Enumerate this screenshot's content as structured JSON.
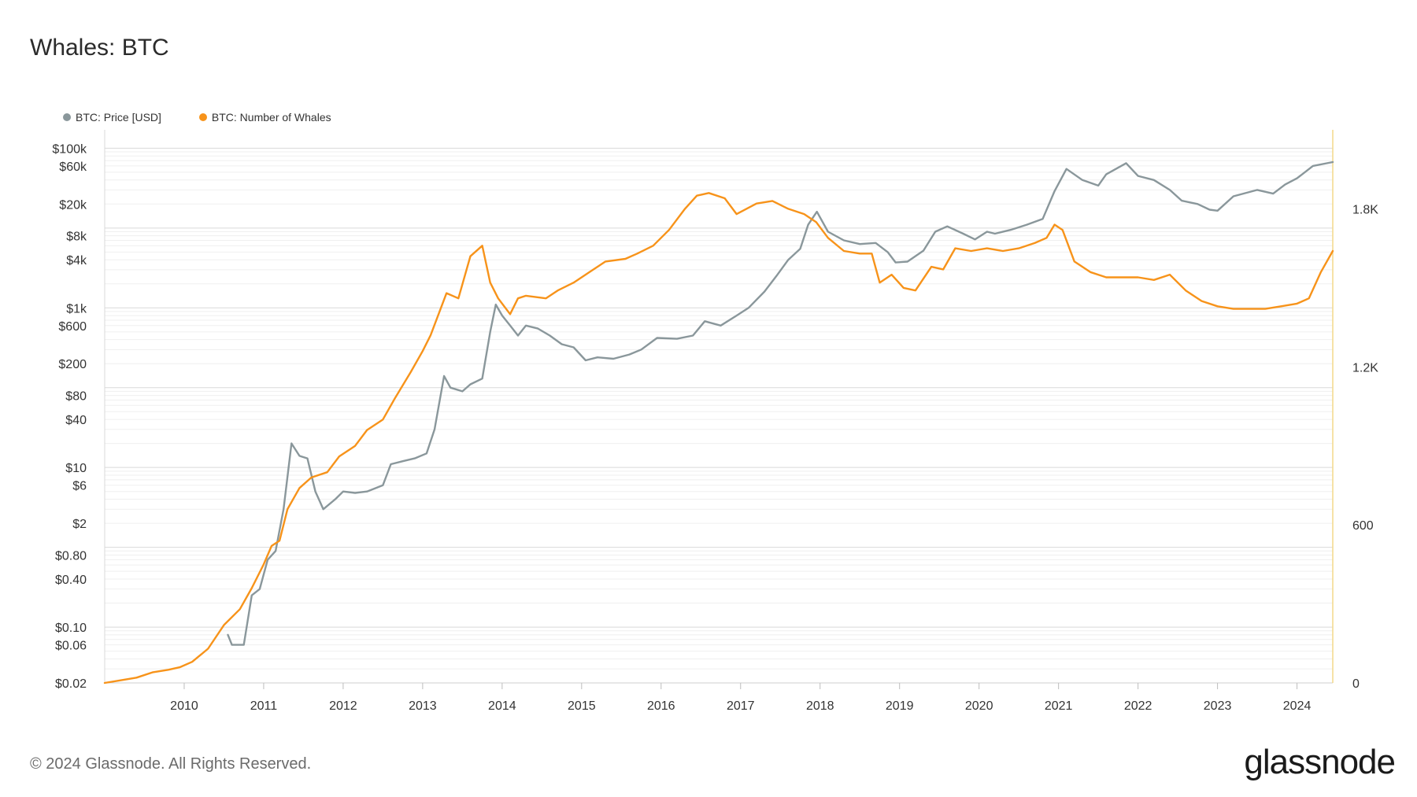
{
  "page": {
    "title": "Whales: BTC",
    "footer": "© 2024 Glassnode. All Rights Reserved.",
    "brand": "glassnode"
  },
  "chart_data": {
    "type": "line",
    "title": "Whales: BTC",
    "legend": "top-left",
    "grid": true,
    "x_ticks": [
      "2010",
      "2011",
      "2012",
      "2013",
      "2014",
      "2015",
      "2016",
      "2017",
      "2018",
      "2019",
      "2020",
      "2021",
      "2022",
      "2023",
      "2024"
    ],
    "x_range": [
      2009.0,
      2024.45
    ],
    "y_left": {
      "scale": "log",
      "range": [
        0.02,
        170000
      ],
      "ticks": [
        {
          "v": 0.02,
          "label": "$0.02"
        },
        {
          "v": 0.06,
          "label": "$0.06"
        },
        {
          "v": 0.1,
          "label": "$0.10"
        },
        {
          "v": 0.4,
          "label": "$0.40"
        },
        {
          "v": 0.8,
          "label": "$0.80"
        },
        {
          "v": 2,
          "label": "$2"
        },
        {
          "v": 6,
          "label": "$6"
        },
        {
          "v": 10,
          "label": "$10"
        },
        {
          "v": 40,
          "label": "$40"
        },
        {
          "v": 80,
          "label": "$80"
        },
        {
          "v": 200,
          "label": "$200"
        },
        {
          "v": 600,
          "label": "$600"
        },
        {
          "v": 1000,
          "label": "$1k"
        },
        {
          "v": 4000,
          "label": "$4k"
        },
        {
          "v": 8000,
          "label": "$8k"
        },
        {
          "v": 20000,
          "label": "$20k"
        },
        {
          "v": 60000,
          "label": "$60k"
        },
        {
          "v": 100000,
          "label": "$100k"
        }
      ]
    },
    "y_right": {
      "scale": "linear",
      "range": [
        0,
        2100
      ],
      "ticks": [
        {
          "v": 0,
          "label": "0"
        },
        {
          "v": 600,
          "label": "600"
        },
        {
          "v": 1200,
          "label": "1.2K"
        },
        {
          "v": 1800,
          "label": "1.8K"
        }
      ]
    },
    "series": [
      {
        "name": "BTC: Price [USD]",
        "color": "#8a979b",
        "axis": "left",
        "x": [
          2010.55,
          2010.6,
          2010.75,
          2010.85,
          2010.95,
          2011.05,
          2011.15,
          2011.25,
          2011.35,
          2011.45,
          2011.55,
          2011.65,
          2011.75,
          2011.9,
          2012.0,
          2012.15,
          2012.3,
          2012.5,
          2012.6,
          2012.75,
          2012.9,
          2013.05,
          2013.15,
          2013.27,
          2013.35,
          2013.5,
          2013.6,
          2013.75,
          2013.85,
          2013.92,
          2014.0,
          2014.1,
          2014.2,
          2014.3,
          2014.45,
          2014.6,
          2014.75,
          2014.9,
          2015.05,
          2015.2,
          2015.4,
          2015.6,
          2015.75,
          2015.95,
          2016.2,
          2016.4,
          2016.55,
          2016.75,
          2016.95,
          2017.1,
          2017.3,
          2017.45,
          2017.6,
          2017.75,
          2017.85,
          2017.96,
          2018.1,
          2018.3,
          2018.5,
          2018.7,
          2018.85,
          2018.95,
          2019.1,
          2019.3,
          2019.45,
          2019.6,
          2019.8,
          2019.95,
          2020.1,
          2020.2,
          2020.4,
          2020.6,
          2020.8,
          2020.95,
          2021.1,
          2021.3,
          2021.5,
          2021.6,
          2021.85,
          2022.0,
          2022.2,
          2022.4,
          2022.55,
          2022.75,
          2022.9,
          2023.0,
          2023.2,
          2023.5,
          2023.7,
          2023.85,
          2024.0,
          2024.2,
          2024.45
        ],
        "y": [
          0.08,
          0.06,
          0.06,
          0.25,
          0.3,
          0.7,
          0.9,
          3.0,
          20,
          14,
          13,
          5,
          3,
          4,
          5,
          4.8,
          5,
          6,
          11,
          12,
          13,
          15,
          30,
          140,
          100,
          90,
          110,
          130,
          500,
          1100,
          800,
          600,
          450,
          600,
          550,
          450,
          350,
          320,
          220,
          240,
          230,
          260,
          300,
          420,
          410,
          450,
          680,
          600,
          800,
          1000,
          1600,
          2500,
          4000,
          5500,
          11000,
          16000,
          9000,
          7000,
          6300,
          6500,
          5000,
          3700,
          3800,
          5200,
          9000,
          10500,
          8500,
          7200,
          9000,
          8500,
          9500,
          11000,
          13000,
          29000,
          55000,
          40000,
          34000,
          47000,
          65000,
          45000,
          40000,
          30000,
          22000,
          20000,
          17000,
          16500,
          25000,
          30000,
          27000,
          35000,
          42000,
          60000,
          67000
        ]
      },
      {
        "name": "BTC: Number of Whales",
        "color": "#f7931a",
        "axis": "right",
        "x": [
          2009.0,
          2009.2,
          2009.4,
          2009.6,
          2009.8,
          2009.95,
          2010.1,
          2010.3,
          2010.5,
          2010.7,
          2010.85,
          2011.0,
          2011.1,
          2011.2,
          2011.3,
          2011.45,
          2011.6,
          2011.8,
          2011.95,
          2012.15,
          2012.3,
          2012.5,
          2012.65,
          2012.85,
          2013.0,
          2013.1,
          2013.3,
          2013.45,
          2013.6,
          2013.75,
          2013.85,
          2013.95,
          2014.1,
          2014.2,
          2014.3,
          2014.55,
          2014.7,
          2014.9,
          2015.1,
          2015.3,
          2015.55,
          2015.7,
          2015.9,
          2016.1,
          2016.3,
          2016.45,
          2016.6,
          2016.8,
          2016.95,
          2017.2,
          2017.4,
          2017.6,
          2017.8,
          2017.95,
          2018.1,
          2018.3,
          2018.5,
          2018.65,
          2018.75,
          2018.9,
          2019.05,
          2019.2,
          2019.4,
          2019.55,
          2019.7,
          2019.9,
          2020.1,
          2020.3,
          2020.5,
          2020.7,
          2020.85,
          2020.95,
          2021.05,
          2021.2,
          2021.4,
          2021.6,
          2021.8,
          2022.0,
          2022.2,
          2022.4,
          2022.6,
          2022.8,
          2023.0,
          2023.2,
          2023.4,
          2023.6,
          2023.8,
          2024.0,
          2024.15,
          2024.3,
          2024.45
        ],
        "y": [
          0,
          10,
          20,
          40,
          50,
          60,
          80,
          130,
          220,
          280,
          360,
          450,
          520,
          540,
          660,
          740,
          780,
          800,
          860,
          900,
          960,
          1000,
          1080,
          1180,
          1260,
          1320,
          1480,
          1460,
          1620,
          1660,
          1520,
          1460,
          1400,
          1460,
          1470,
          1460,
          1490,
          1520,
          1560,
          1600,
          1610,
          1630,
          1660,
          1720,
          1800,
          1850,
          1860,
          1840,
          1780,
          1820,
          1830,
          1800,
          1780,
          1750,
          1690,
          1640,
          1630,
          1630,
          1520,
          1550,
          1500,
          1490,
          1580,
          1570,
          1650,
          1640,
          1650,
          1640,
          1650,
          1670,
          1690,
          1740,
          1720,
          1600,
          1560,
          1540,
          1540,
          1540,
          1530,
          1550,
          1490,
          1450,
          1430,
          1420,
          1420,
          1420,
          1430,
          1440,
          1460,
          1560,
          1640
        ]
      }
    ]
  }
}
